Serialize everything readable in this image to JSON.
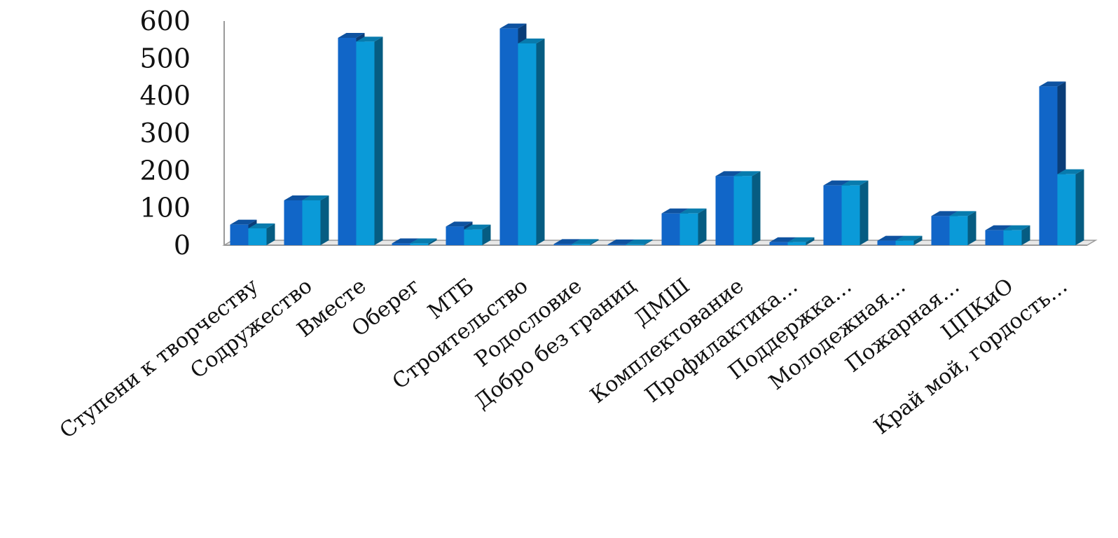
{
  "chart_data": {
    "type": "bar",
    "categories": [
      "Ступени к творчеству",
      "Содружество",
      "Вместе",
      "Оберег",
      "МТБ",
      "Строительство",
      "Родословие",
      "Добро без границ",
      "ДМШ",
      "Комплектование",
      "Профилактика…",
      "Поддержка…",
      "Молодежная…",
      "Пожарная…",
      "ЦПКиО",
      "Край мой, гордость…"
    ],
    "series": [
      {
        "values": [
          55,
          120,
          555,
          5,
          50,
          580,
          3,
          2,
          85,
          185,
          8,
          160,
          12,
          78,
          40,
          425
        ]
      },
      {
        "values": [
          45,
          120,
          545,
          5,
          42,
          540,
          3,
          2,
          85,
          185,
          8,
          160,
          12,
          78,
          40,
          190
        ]
      }
    ],
    "yticks": [
      "0",
      "100",
      "200",
      "300",
      "400",
      "500",
      "600"
    ],
    "ylim": [
      0,
      600
    ],
    "title": "",
    "xlabel": "",
    "ylabel": "",
    "legend": "none",
    "grid": false,
    "colors": [
      "#1166c8",
      "#0a9ad8"
    ]
  }
}
